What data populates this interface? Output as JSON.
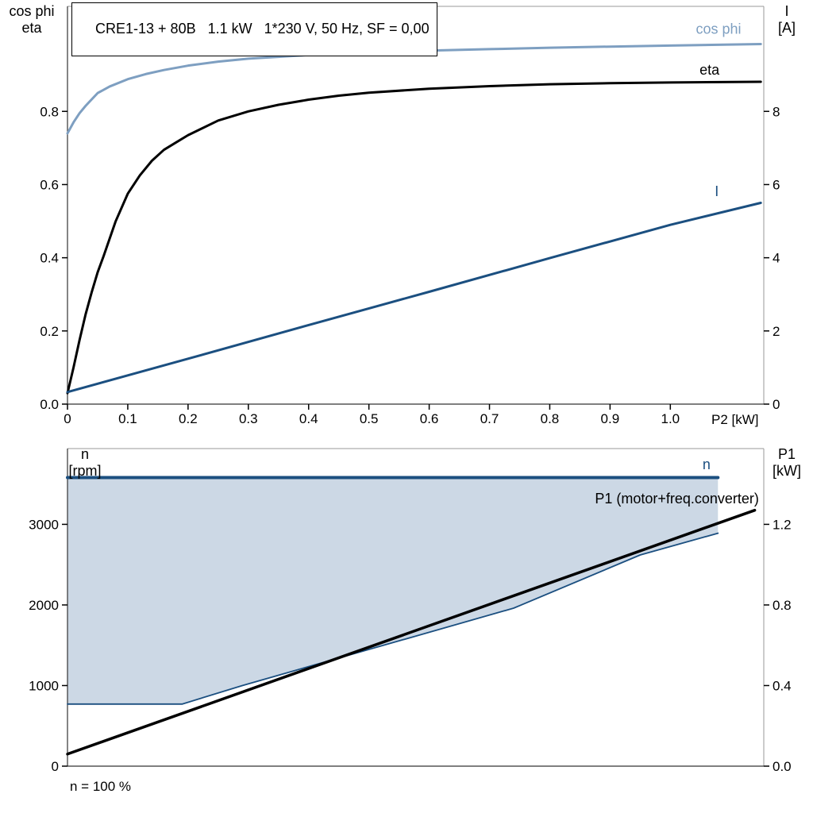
{
  "header": {
    "title": "CRE1-13 + 80B   1.1 kW   1*230 V, 50 Hz, SF = 0,00"
  },
  "top_chart": {
    "left_axis_line1": "cos phi",
    "left_axis_line2": "eta",
    "right_axis_line1": "I",
    "right_axis_line2": "[A]",
    "x_axis_label": "P2 [kW]"
  },
  "bottom_chart": {
    "left_axis_line1": "n",
    "left_axis_line2": "[rpm]",
    "right_axis_line1": "P1",
    "right_axis_line2": "[kW]",
    "footnote": "n = 100 %"
  },
  "colors": {
    "cos_phi": "#7e9fc1",
    "dark_blue": "#1b4f80",
    "black": "#000000",
    "fill_light_blue": "#ccd8e5",
    "border_gray": "#999999",
    "axis_dark": "#333333"
  },
  "chart_data": [
    {
      "type": "line",
      "title": "CRE1-13 + 80B   1.1 kW   1*230 V, 50 Hz, SF = 0,00",
      "xlabel": "P2 [kW]",
      "ylabel_left": "cos phi / eta",
      "ylabel_right": "I [A]",
      "xlim": [
        0,
        1.155
      ],
      "ylim_left": [
        0,
        1.087
      ],
      "ylim_right": [
        0,
        10.87
      ],
      "grid": false,
      "x_ticks": {
        "values": [
          0,
          0.1,
          0.2,
          0.3,
          0.4,
          0.5,
          0.6,
          0.7,
          0.8,
          0.9,
          1.0
        ],
        "labels": [
          "0",
          "0.1",
          "0.2",
          "0.3",
          "0.4",
          "0.5",
          "0.6",
          "0.7",
          "0.8",
          "0.9",
          "1.0"
        ]
      },
      "left_ticks": {
        "values": [
          0,
          0.2,
          0.4,
          0.6,
          0.8
        ],
        "labels": [
          "0.0",
          "0.2",
          "0.4",
          "0.6",
          "0.8"
        ]
      },
      "right_ticks": {
        "values": [
          0,
          2,
          4,
          6,
          8
        ],
        "labels": [
          "0",
          "2",
          "4",
          "6",
          "8"
        ]
      },
      "series": [
        {
          "name": "cos phi",
          "axis": "left",
          "color": "#7e9fc1",
          "width": 3,
          "points": [
            [
              0,
              0.74
            ],
            [
              0.01,
              0.77
            ],
            [
              0.02,
              0.795
            ],
            [
              0.03,
              0.815
            ],
            [
              0.05,
              0.85
            ],
            [
              0.07,
              0.868
            ],
            [
              0.1,
              0.888
            ],
            [
              0.13,
              0.902
            ],
            [
              0.16,
              0.913
            ],
            [
              0.2,
              0.925
            ],
            [
              0.25,
              0.936
            ],
            [
              0.3,
              0.944
            ],
            [
              0.4,
              0.954
            ],
            [
              0.5,
              0.961
            ],
            [
              0.6,
              0.966
            ],
            [
              0.7,
              0.97
            ],
            [
              0.8,
              0.974
            ],
            [
              0.9,
              0.977
            ],
            [
              1.0,
              0.98
            ],
            [
              1.15,
              0.984
            ]
          ],
          "label": {
            "text": "cos phi",
            "x": 1.08,
            "y": 1.012,
            "anchor": "middle"
          }
        },
        {
          "name": "eta",
          "axis": "left",
          "color": "#000000",
          "width": 3,
          "points": [
            [
              0,
              0.03
            ],
            [
              0.01,
              0.1
            ],
            [
              0.02,
              0.175
            ],
            [
              0.03,
              0.245
            ],
            [
              0.04,
              0.305
            ],
            [
              0.05,
              0.36
            ],
            [
              0.06,
              0.405
            ],
            [
              0.08,
              0.5
            ],
            [
              0.1,
              0.575
            ],
            [
              0.12,
              0.625
            ],
            [
              0.14,
              0.665
            ],
            [
              0.16,
              0.695
            ],
            [
              0.18,
              0.715
            ],
            [
              0.2,
              0.735
            ],
            [
              0.25,
              0.775
            ],
            [
              0.3,
              0.8
            ],
            [
              0.35,
              0.818
            ],
            [
              0.4,
              0.832
            ],
            [
              0.45,
              0.843
            ],
            [
              0.5,
              0.851
            ],
            [
              0.6,
              0.862
            ],
            [
              0.7,
              0.869
            ],
            [
              0.8,
              0.874
            ],
            [
              0.9,
              0.877
            ],
            [
              1.0,
              0.879
            ],
            [
              1.15,
              0.881
            ]
          ],
          "label": {
            "text": "eta",
            "x": 1.065,
            "y": 0.9,
            "anchor": "middle"
          }
        },
        {
          "name": "I",
          "axis": "right",
          "color": "#1b4f80",
          "width": 3,
          "points": [
            [
              0,
              0.33
            ],
            [
              0.2,
              1.24
            ],
            [
              0.4,
              2.16
            ],
            [
              0.6,
              3.07
            ],
            [
              0.8,
              3.99
            ],
            [
              1.0,
              4.9
            ],
            [
              1.15,
              5.5
            ]
          ],
          "label": {
            "text": "I",
            "x": 1.077,
            "y": 5.68,
            "anchor": "middle"
          }
        }
      ]
    },
    {
      "type": "line",
      "title": "",
      "xlabel": "",
      "ylabel_left": "n [rpm]",
      "ylabel_right": "P1 [kW]",
      "xlim": [
        0,
        1.155
      ],
      "ylim_left": [
        0,
        3940
      ],
      "ylim_right": [
        0,
        1.576
      ],
      "grid": false,
      "x_ticks": {
        "values": [],
        "labels": []
      },
      "left_ticks": {
        "values": [
          0,
          1000,
          2000,
          3000
        ],
        "labels": [
          "0",
          "1000",
          "2000",
          "3000"
        ]
      },
      "right_ticks": {
        "values": [
          0,
          0.4,
          0.8,
          1.2
        ],
        "labels": [
          "0.0",
          "0.4",
          "0.8",
          "1.2"
        ]
      },
      "fill_region": {
        "color": "#ccd8e5",
        "points": [
          [
            0,
            3580
          ],
          [
            1.079,
            3580
          ],
          [
            1.079,
            2890
          ],
          [
            0.95,
            2620
          ],
          [
            0.74,
            1960
          ],
          [
            0.29,
            1000
          ],
          [
            0.19,
            770
          ],
          [
            0,
            770
          ]
        ]
      },
      "series": [
        {
          "name": "n",
          "axis": "left",
          "color": "#1b4f80",
          "width": 4,
          "points": [
            [
              0,
              3580
            ],
            [
              1.079,
              3580
            ]
          ],
          "label": {
            "text": "n",
            "x": 1.06,
            "y": 3685,
            "anchor": "middle"
          }
        },
        {
          "name": "speed range lower limit",
          "axis": "left",
          "color": "#1b4f80",
          "width": 1.8,
          "points": [
            [
              0,
              770
            ],
            [
              0.19,
              770
            ],
            [
              0.29,
              1000
            ],
            [
              0.74,
              1960
            ],
            [
              0.95,
              2620
            ],
            [
              1.079,
              2890
            ]
          ]
        },
        {
          "name": "P1 (motor+freq.converter)",
          "axis": "right",
          "color": "#000000",
          "width": 3.5,
          "points": [
            [
              0,
              0.06
            ],
            [
              1.14,
              1.27
            ]
          ],
          "label": {
            "text": "P1 (motor+freq.converter)",
            "x": 1.147,
            "y": 1.305,
            "anchor": "end"
          }
        }
      ]
    }
  ]
}
